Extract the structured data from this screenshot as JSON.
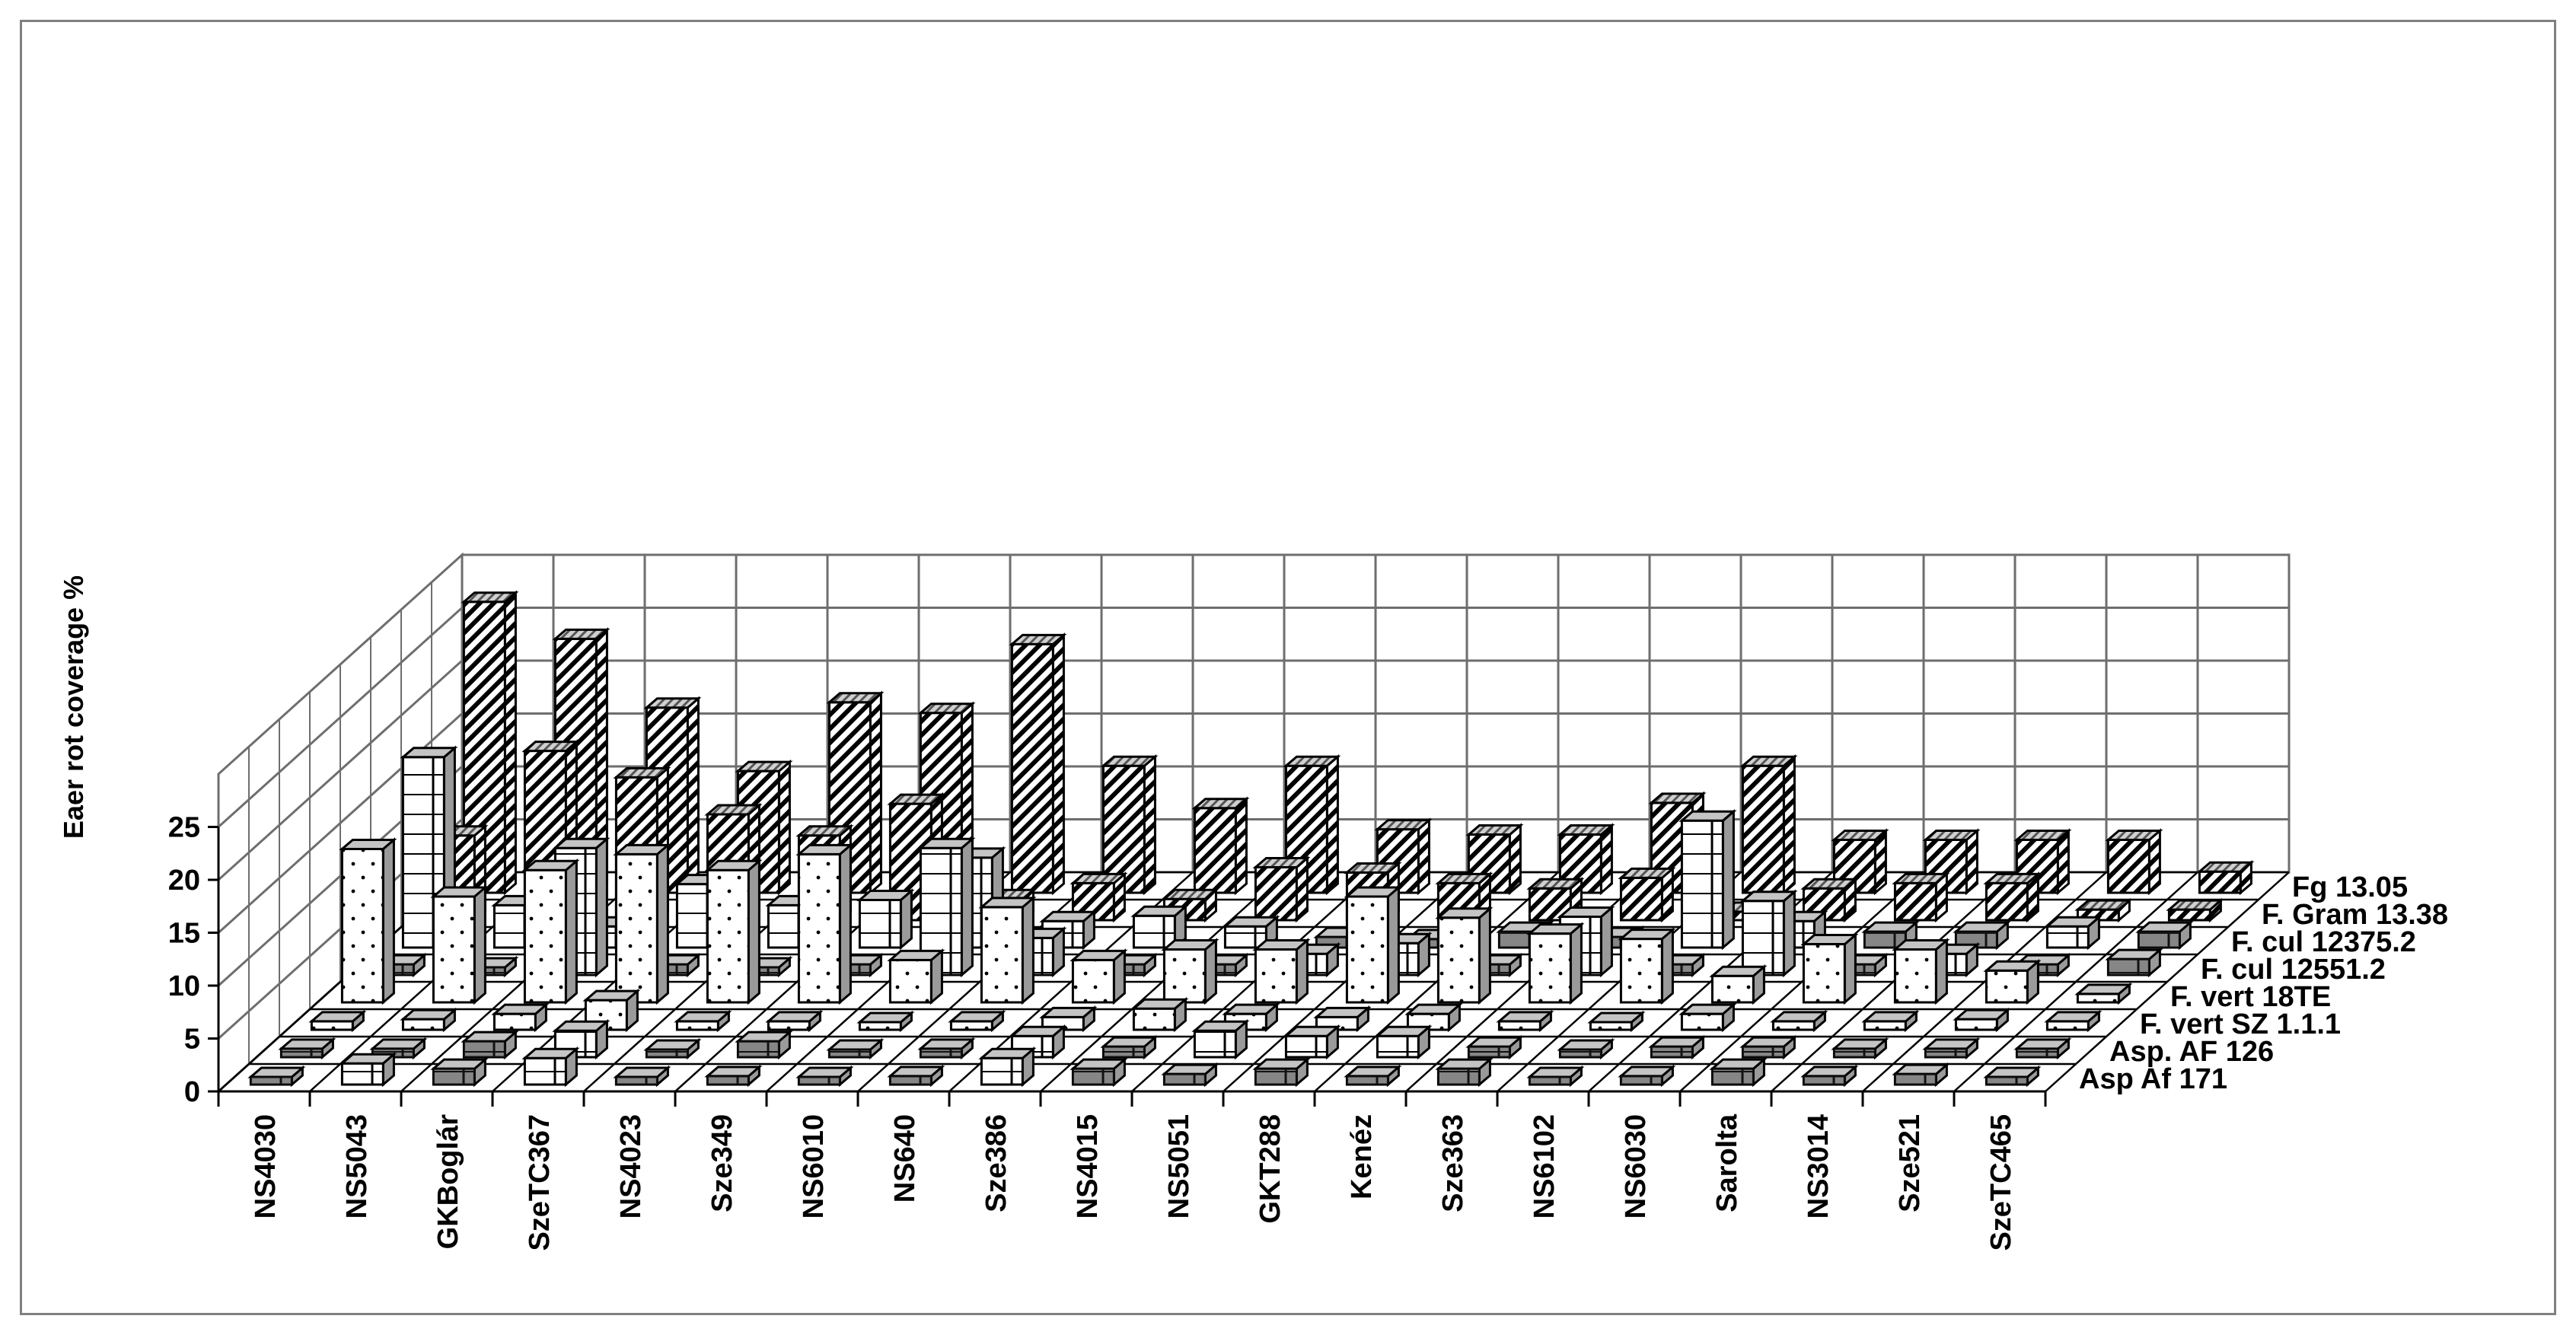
{
  "chart_data": {
    "type": "bar",
    "subtype": "3d-bar",
    "title": "",
    "xlabel": "",
    "ylabel": "Eaer rot coverage %",
    "ylim": [
      0,
      25
    ],
    "yticks": [
      "0",
      "5",
      "10",
      "15",
      "20",
      "25"
    ],
    "grid": true,
    "categories": [
      "NS4030",
      "NS5043",
      "GKBoglár",
      "SzeTC367",
      "NS4023",
      "Sze349",
      "NS6010",
      "NS640",
      "Sze386",
      "NS4015",
      "NS5051",
      "GKT288",
      "Kenéz",
      "Sze363",
      "NS6102",
      "NS6030",
      "Sarolta",
      "NS3014",
      "Sze521",
      "SzeTC465"
    ],
    "series": [
      {
        "name": "Asp Af 171",
        "pattern": "brick",
        "values": [
          0.5,
          2.0,
          1.5,
          2.5,
          0.3,
          0.8,
          0.5,
          0.8,
          2.5,
          1.5,
          1.0,
          1.5,
          0.8,
          1.5,
          0.2,
          0.8,
          1.5,
          0.8,
          1.0,
          0.5
        ]
      },
      {
        "name": "Asp. AF 126",
        "pattern": "brick",
        "values": [
          0.8,
          0.8,
          1.5,
          2.5,
          0.5,
          1.5,
          0.3,
          0.8,
          2.0,
          1.0,
          2.5,
          2.0,
          2.0,
          1.0,
          0.3,
          1.0,
          1.0,
          0.8,
          0.8,
          0.8
        ]
      },
      {
        "name": "F. vert SZ 1.1.1",
        "pattern": "dots",
        "values": [
          0.8,
          1.0,
          1.5,
          2.8,
          0.8,
          0.8,
          0.5,
          0.8,
          1.2,
          2.0,
          1.5,
          1.2,
          1.5,
          0.8,
          0.5,
          1.5,
          0.8,
          0.8,
          1.0,
          0.8
        ]
      },
      {
        "name": "F. vert 18TE",
        "pattern": "dots",
        "values": [
          14.5,
          10.0,
          12.5,
          14.0,
          12.5,
          14.0,
          4.0,
          9.0,
          4.0,
          5.0,
          5.0,
          10.0,
          8.0,
          6.5,
          6.0,
          2.5,
          5.5,
          5.0,
          3.0,
          0.8
        ]
      },
      {
        "name": "F. cul 12551.2",
        "pattern": "brick",
        "values": [
          1.0,
          0.3,
          12.0,
          1.0,
          0.5,
          1.0,
          12.0,
          3.5,
          1.0,
          1.0,
          2.0,
          3.0,
          1.0,
          5.5,
          1.0,
          7.0,
          1.0,
          2.0,
          1.0,
          1.5
        ]
      },
      {
        "name": "F. cul 12375.2",
        "pattern": "brick",
        "values": [
          18.0,
          4.0,
          2.0,
          6.0,
          4.0,
          4.5,
          8.5,
          2.5,
          3.0,
          2.0,
          1.0,
          0.8,
          1.5,
          1.0,
          12.0,
          2.5,
          1.5,
          1.5,
          2.0,
          1.5
        ]
      },
      {
        "name": "F. Gram 13.38",
        "pattern": "diagonal",
        "values": [
          8.0,
          16.0,
          13.5,
          10.0,
          8.0,
          11.0,
          2.0,
          3.5,
          2.0,
          5.0,
          4.5,
          3.5,
          3.0,
          4.0,
          0.8,
          3.0,
          3.5,
          3.5,
          1.0,
          1.0
        ]
      },
      {
        "name": "Fg 13.05",
        "pattern": "diagonal",
        "values": [
          27.5,
          24.0,
          17.5,
          11.5,
          18.0,
          17.0,
          23.5,
          12.0,
          8.0,
          12.0,
          6.0,
          5.5,
          5.5,
          8.5,
          12.0,
          5.0,
          5.0,
          5.0,
          5.0,
          2.0
        ]
      }
    ],
    "legend": "series labels along depth axis, right side"
  }
}
